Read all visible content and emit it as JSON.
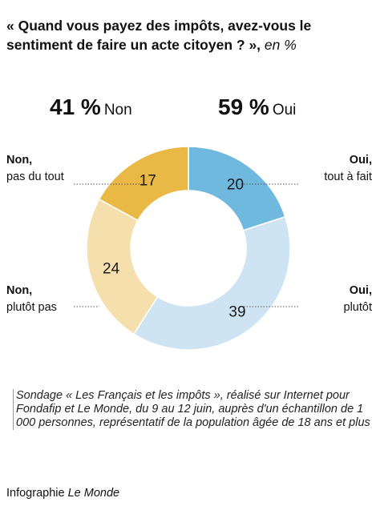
{
  "title": "« Quand vous payez des impôts, avez-vous le sentiment de faire un acte citoyen ? »,",
  "title_unit": "en %",
  "totals": {
    "non": {
      "value": "41 %",
      "label": "Non"
    },
    "oui": {
      "value": "59 %",
      "label": "Oui"
    }
  },
  "chart_data": {
    "type": "pie",
    "variant": "donut",
    "title": "« Quand vous payez des impôts, avez-vous le sentiment de faire un acte citoyen ? », en %",
    "slices": [
      {
        "group": "Oui,",
        "label": "tout à fait",
        "value": 20,
        "color": "#6fb8de"
      },
      {
        "group": "Oui,",
        "label": "plutôt",
        "value": 39,
        "color": "#cfe4f3"
      },
      {
        "group": "Non,",
        "label": "plutôt pas",
        "value": 24,
        "color": "#f4dfad"
      },
      {
        "group": "Non,",
        "label": "pas du tout",
        "value": 17,
        "color": "#e9b845"
      }
    ],
    "legend": "labels beside slices"
  },
  "note": "Sondage « Les Français et les impôts », réalisé sur Internet pour Fondafip et Le Monde, du 9 au 12 juin, auprès d'un échantillon de 1 000 personnes, représentatif de la population âgée de 18 ans et plus",
  "credit": {
    "prefix": "Infographie",
    "brand": "Le Monde"
  }
}
